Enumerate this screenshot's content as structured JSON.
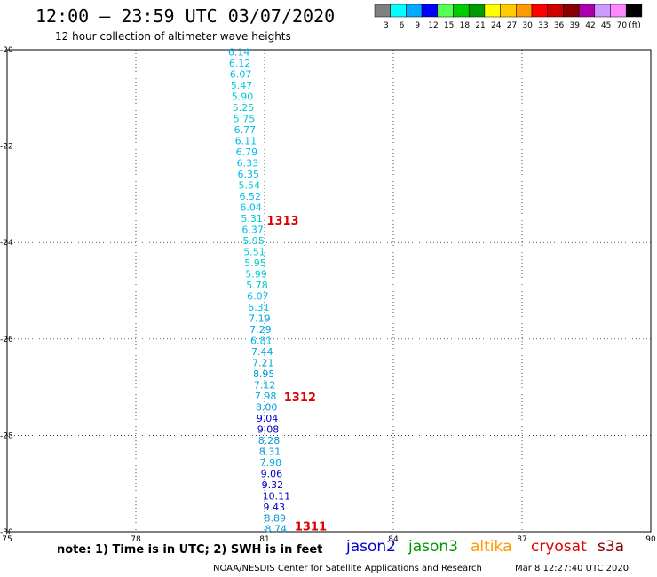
{
  "header": {
    "title": "12:00 – 23:59 UTC 03/07/2020",
    "subtitle": "12 hour collection of altimeter wave heights"
  },
  "legend": {
    "unit": "(ft)",
    "bins": [
      {
        "label": "3",
        "color": "#808080"
      },
      {
        "label": "6",
        "color": "#00ffff"
      },
      {
        "label": "9",
        "color": "#00aaff"
      },
      {
        "label": "12",
        "color": "#0000ff"
      },
      {
        "label": "15",
        "color": "#55ff55"
      },
      {
        "label": "18",
        "color": "#00cc00"
      },
      {
        "label": "21",
        "color": "#009900"
      },
      {
        "label": "24",
        "color": "#ffff00"
      },
      {
        "label": "27",
        "color": "#ffcc00"
      },
      {
        "label": "30",
        "color": "#ff9900"
      },
      {
        "label": "33",
        "color": "#ff0000"
      },
      {
        "label": "36",
        "color": "#cc0000"
      },
      {
        "label": "39",
        "color": "#880000"
      },
      {
        "label": "42",
        "color": "#aa00aa"
      },
      {
        "label": "45",
        "color": "#cc99ff"
      },
      {
        "label": "70",
        "color": "#ff88ff"
      },
      {
        "label": "",
        "color": "#000000"
      }
    ]
  },
  "map": {
    "lat_range": [
      -30,
      -20
    ],
    "lon_range": [
      75,
      90
    ],
    "lat_ticks": [
      "-20",
      "-22",
      "-24",
      "-26",
      "-28",
      "-30"
    ],
    "lon_ticks": [
      "75",
      "78",
      "81",
      "84",
      "87",
      "90"
    ],
    "grid": "dotted"
  },
  "observations": [
    {
      "value": "6.14",
      "lat": -20.05,
      "lon": 80.15,
      "color": "#00bbee"
    },
    {
      "value": "6.12",
      "lat": -20.28,
      "lon": 80.17,
      "color": "#00bbee"
    },
    {
      "value": "6.07",
      "lat": -20.51,
      "lon": 80.19,
      "color": "#00bbee"
    },
    {
      "value": "5.47",
      "lat": -20.74,
      "lon": 80.21,
      "color": "#00cccc"
    },
    {
      "value": "5.90",
      "lat": -20.97,
      "lon": 80.23,
      "color": "#00cccc"
    },
    {
      "value": "5.25",
      "lat": -21.2,
      "lon": 80.25,
      "color": "#00cccc"
    },
    {
      "value": "5.75",
      "lat": -21.43,
      "lon": 80.27,
      "color": "#00cccc"
    },
    {
      "value": "6.77",
      "lat": -21.66,
      "lon": 80.29,
      "color": "#00bbee"
    },
    {
      "value": "6.11",
      "lat": -21.89,
      "lon": 80.31,
      "color": "#00bbee"
    },
    {
      "value": "6.79",
      "lat": -22.12,
      "lon": 80.33,
      "color": "#00bbee"
    },
    {
      "value": "6.33",
      "lat": -22.35,
      "lon": 80.35,
      "color": "#00bbee"
    },
    {
      "value": "6.35",
      "lat": -22.58,
      "lon": 80.37,
      "color": "#00bbee"
    },
    {
      "value": "5.54",
      "lat": -22.81,
      "lon": 80.39,
      "color": "#00cccc"
    },
    {
      "value": "6.52",
      "lat": -23.04,
      "lon": 80.41,
      "color": "#00bbee"
    },
    {
      "value": "6.04",
      "lat": -23.27,
      "lon": 80.43,
      "color": "#00bbee"
    },
    {
      "value": "5.31",
      "lat": -23.5,
      "lon": 80.45,
      "color": "#00cccc"
    },
    {
      "value": "6.37",
      "lat": -23.73,
      "lon": 80.47,
      "color": "#00bbee"
    },
    {
      "value": "5.95",
      "lat": -23.96,
      "lon": 80.49,
      "color": "#00cccc"
    },
    {
      "value": "5.51",
      "lat": -24.19,
      "lon": 80.51,
      "color": "#00cccc"
    },
    {
      "value": "5.95",
      "lat": -24.42,
      "lon": 80.53,
      "color": "#00cccc"
    },
    {
      "value": "5.99",
      "lat": -24.65,
      "lon": 80.55,
      "color": "#00cccc"
    },
    {
      "value": "5.78",
      "lat": -24.88,
      "lon": 80.57,
      "color": "#00cccc"
    },
    {
      "value": "6.07",
      "lat": -25.11,
      "lon": 80.59,
      "color": "#00bbee"
    },
    {
      "value": "6.31",
      "lat": -25.34,
      "lon": 80.61,
      "color": "#00bbee"
    },
    {
      "value": "7.19",
      "lat": -25.57,
      "lon": 80.63,
      "color": "#00aadd"
    },
    {
      "value": "7.29",
      "lat": -25.8,
      "lon": 80.65,
      "color": "#00aadd"
    },
    {
      "value": "6.81",
      "lat": -26.03,
      "lon": 80.67,
      "color": "#00bbee"
    },
    {
      "value": "7.44",
      "lat": -26.26,
      "lon": 80.69,
      "color": "#00aadd"
    },
    {
      "value": "7.21",
      "lat": -26.49,
      "lon": 80.71,
      "color": "#00aadd"
    },
    {
      "value": "8.95",
      "lat": -26.72,
      "lon": 80.73,
      "color": "#0099dd"
    },
    {
      "value": "7.12",
      "lat": -26.95,
      "lon": 80.75,
      "color": "#00aadd"
    },
    {
      "value": "7.98",
      "lat": -27.18,
      "lon": 80.77,
      "color": "#00aadd"
    },
    {
      "value": "8.00",
      "lat": -27.41,
      "lon": 80.79,
      "color": "#0099dd"
    },
    {
      "value": "9.04",
      "lat": -27.64,
      "lon": 80.81,
      "color": "#0000cc"
    },
    {
      "value": "9.08",
      "lat": -27.87,
      "lon": 80.83,
      "color": "#0000cc"
    },
    {
      "value": "8.28",
      "lat": -28.1,
      "lon": 80.85,
      "color": "#0099dd"
    },
    {
      "value": "8.31",
      "lat": -28.33,
      "lon": 80.87,
      "color": "#0099dd"
    },
    {
      "value": "7.98",
      "lat": -28.56,
      "lon": 80.89,
      "color": "#00aadd"
    },
    {
      "value": "9.06",
      "lat": -28.79,
      "lon": 80.91,
      "color": "#0000cc"
    },
    {
      "value": "9.32",
      "lat": -29.02,
      "lon": 80.93,
      "color": "#0000cc"
    },
    {
      "value": "10.11",
      "lat": -29.25,
      "lon": 80.95,
      "color": "#0000cc"
    },
    {
      "value": "9.43",
      "lat": -29.48,
      "lon": 80.97,
      "color": "#0000cc"
    },
    {
      "value": "8.89",
      "lat": -29.71,
      "lon": 80.99,
      "color": "#0099dd"
    },
    {
      "value": "8.74",
      "lat": -29.94,
      "lon": 81.01,
      "color": "#0099dd"
    }
  ],
  "time_labels": [
    {
      "value": "1313",
      "lat": -23.55,
      "lon": 81.05,
      "color": "#dd0000"
    },
    {
      "value": "1312",
      "lat": -27.22,
      "lon": 81.45,
      "color": "#dd0000"
    },
    {
      "value": "1311",
      "lat": -29.9,
      "lon": 81.7,
      "color": "#dd0000"
    }
  ],
  "footer": {
    "note": "note: 1) Time is in UTC; 2) SWH is in feet",
    "missions": [
      {
        "name": "jason2",
        "color": "#0000cc"
      },
      {
        "name": "jason3",
        "color": "#009900"
      },
      {
        "name": "altika",
        "color": "#ff9900"
      },
      {
        "name": "cryosat",
        "color": "#dd0000"
      },
      {
        "name": "s3a",
        "color": "#880000"
      }
    ],
    "credit": "NOAA/NESDIS Center for Satellite Applications and Research",
    "timestamp": "Mar  8 12:27:40 UTC 2020"
  }
}
